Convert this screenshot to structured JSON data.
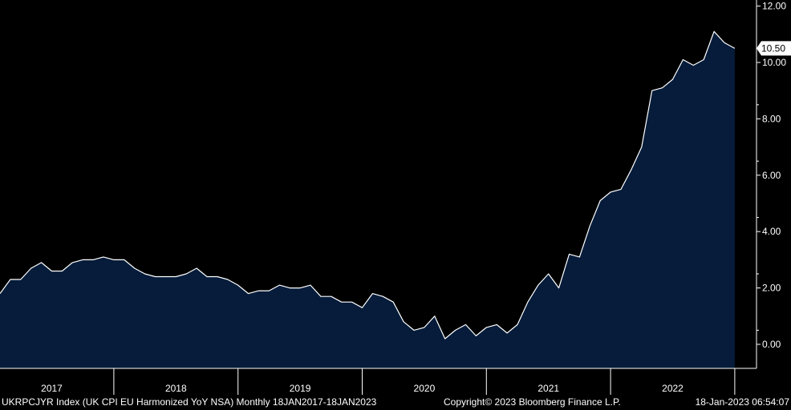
{
  "chart_data": {
    "type": "area",
    "ylim": [
      -0.85,
      12.2
    ],
    "yticks": [
      "12.00",
      "10.00",
      "8.00",
      "6.00",
      "4.00",
      "2.00",
      "0.00"
    ],
    "year_labels": [
      "2017",
      "2018",
      "2019",
      "2020",
      "2021",
      "2022"
    ],
    "last_value_label": "10.50",
    "grid": false,
    "colors": {
      "fill": "#061c3a",
      "line": "#ffffff",
      "background": "#000000",
      "label_bg": "#ffffff",
      "label_text": "#000000"
    },
    "x_start": "2017-01",
    "x_end": "2022-12",
    "series": [
      {
        "values": [
          1.8,
          2.3,
          2.3,
          2.7,
          2.9,
          2.6,
          2.6,
          2.9,
          3.0,
          3.0,
          3.1,
          3.0,
          3.0,
          2.7,
          2.5,
          2.4,
          2.4,
          2.4,
          2.5,
          2.7,
          2.4,
          2.4,
          2.3,
          2.1,
          1.8,
          1.9,
          1.9,
          2.1,
          2.0,
          2.0,
          2.1,
          1.7,
          1.7,
          1.5,
          1.5,
          1.3,
          1.8,
          1.7,
          1.5,
          0.8,
          0.5,
          0.6,
          1.0,
          0.2,
          0.5,
          0.7,
          0.3,
          0.6,
          0.7,
          0.4,
          0.7,
          1.5,
          2.1,
          2.5,
          2.0,
          3.2,
          3.1,
          4.2,
          5.1,
          5.4,
          5.5,
          6.2,
          7.0,
          9.0,
          9.1,
          9.4,
          10.1,
          9.9,
          10.1,
          11.1,
          10.7,
          10.5
        ]
      }
    ]
  },
  "footer": {
    "left": "UKRPCJYR Index (UK CPI EU Harmonized YoY NSA)  Monthly 18JAN2017-18JAN2023",
    "center": "Copyright© 2023 Bloomberg Finance L.P.",
    "right": "18-Jan-2023 06:54:07"
  }
}
